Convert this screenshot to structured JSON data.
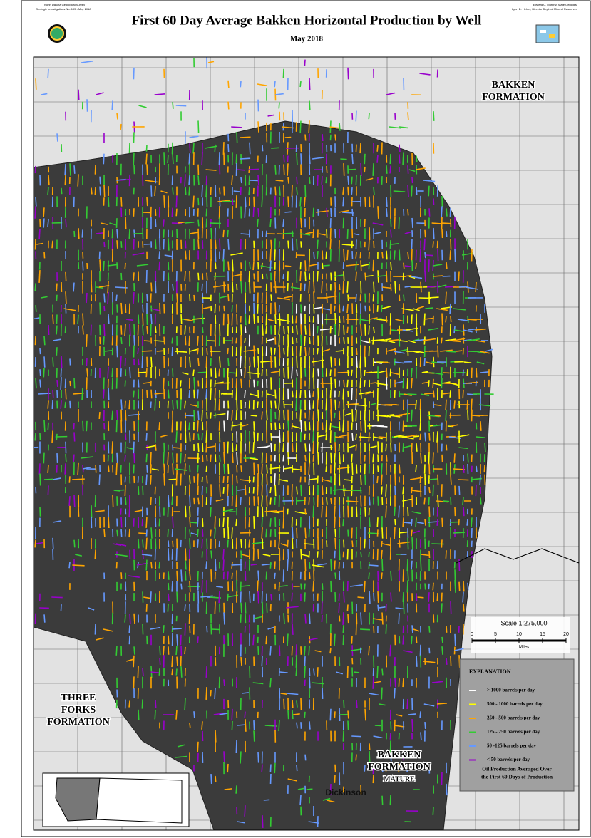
{
  "header": {
    "title": "First 60 Day Average Bakken Horizontal Production by Well",
    "subtitle": "May 2018",
    "left_note": [
      "North Dakota Geological Survey",
      "Geologic Investigations No. 195 - May 2018"
    ],
    "right_note": [
      "Edward C. Murphy, State Geologist",
      "Lynn D. Helms, Director Dept. of Mineral Resources"
    ]
  },
  "map_labels": [
    {
      "lines": [
        "BAKKEN",
        "FORMATION"
      ]
    },
    {
      "lines": [
        "THREE",
        "FORKS",
        "FORMATION"
      ]
    },
    {
      "lines": [
        "BAKKEN",
        "FORMATION",
        "MATURE"
      ]
    },
    {
      "lines": [
        "Dickinson"
      ]
    }
  ],
  "scale": {
    "label": "Scale 1:275,000",
    "ticks": [
      0,
      5,
      10,
      15,
      20
    ],
    "unit": "Miles"
  },
  "legend": {
    "title": "EXPLANATION",
    "items": [
      {
        "label": "> 1000 barrels per day",
        "color": "#ffffff"
      },
      {
        "label": "500 - 1000 barrels per day",
        "color": "#ffff00"
      },
      {
        "label": "250 - 500 barrels per day",
        "color": "#ffa500"
      },
      {
        "label": "125 - 250 barrels per day",
        "color": "#33cc33"
      },
      {
        "label": "50 -125 barrels per day",
        "color": "#6699ff"
      },
      {
        "label": "< 50 barrels per day",
        "color": "#9900cc"
      }
    ],
    "note": [
      "Oil Production Averaged Over",
      "the First 60 Days of Production"
    ]
  }
}
